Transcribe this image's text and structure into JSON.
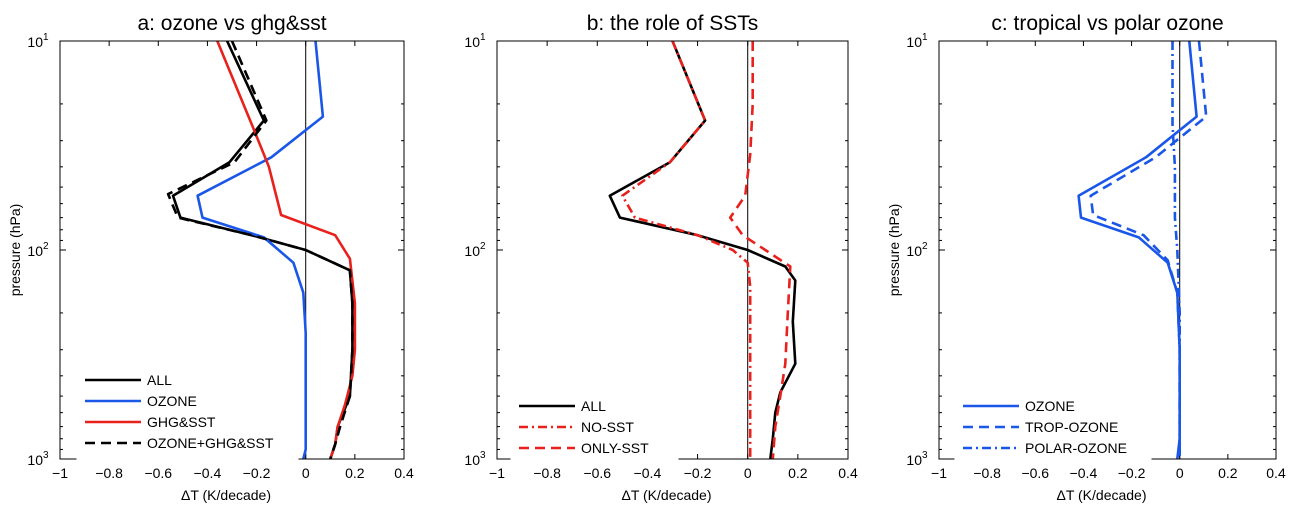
{
  "chart_data": [
    {
      "type": "line",
      "title": "a: ozone vs ghg&sst",
      "xlabel": "ΔT  (K/decade)",
      "ylabel": "pressure (hPa)",
      "xlim": [
        -1,
        0.4
      ],
      "ylim": [
        1000,
        10
      ],
      "yscale": "log",
      "y_inverted": true,
      "xticks": [
        "−1",
        "−0.8",
        "−0.6",
        "−0.4",
        "−0.2",
        "0",
        "0.2",
        "0.4"
      ],
      "yticks": [
        {
          "base": "10",
          "exp": "1",
          "value": 10
        },
        {
          "base": "10",
          "exp": "2",
          "value": 100
        },
        {
          "base": "10",
          "exp": "3",
          "value": 1000
        }
      ],
      "zero_line": true,
      "legend_position": "bottom-left",
      "series": [
        {
          "name": "ALL",
          "color": "#000000",
          "dash": "solid",
          "x": [
            -0.32,
            -0.17,
            -0.31,
            -0.54,
            -0.51,
            -0.22,
            0.0,
            0.18,
            0.19,
            0.19,
            0.18,
            0.13,
            0.12,
            0.1
          ],
          "y": [
            10,
            24,
            38,
            55,
            70,
            85,
            100,
            125,
            180,
            300,
            500,
            700,
            850,
            1000
          ]
        },
        {
          "name": "OZONE",
          "color": "#1a57e8",
          "dash": "solid",
          "x": [
            0.04,
            0.07,
            -0.14,
            -0.44,
            -0.42,
            -0.17,
            -0.05,
            -0.01,
            0.0,
            0.0,
            0.0,
            0.0,
            0.0,
            -0.01
          ],
          "y": [
            10,
            23,
            36,
            55,
            70,
            87,
            115,
            160,
            250,
            400,
            600,
            800,
            900,
            1000
          ]
        },
        {
          "name": "GHG&SST",
          "color": "#e8211c",
          "dash": "solid",
          "x": [
            -0.36,
            -0.22,
            -0.15,
            -0.1,
            0.12,
            0.18,
            0.2,
            0.2,
            0.19,
            0.16,
            0.13,
            0.12,
            0.1
          ],
          "y": [
            10,
            25,
            40,
            68,
            85,
            110,
            180,
            300,
            400,
            550,
            700,
            850,
            1000
          ]
        },
        {
          "name": "OZONE+GHG&SST",
          "color": "#000000",
          "dash": "dashed",
          "x": [
            -0.3,
            -0.16,
            -0.29,
            -0.56,
            -0.52,
            -0.22,
            0.0,
            0.18,
            0.19,
            0.19,
            0.18,
            0.14,
            0.12,
            0.1
          ],
          "y": [
            10,
            24,
            38,
            54,
            70,
            85,
            100,
            125,
            180,
            300,
            500,
            700,
            850,
            1000
          ]
        }
      ]
    },
    {
      "type": "line",
      "title": "b: the role of SSTs",
      "xlabel": "ΔT  (K/decade)",
      "ylabel": "",
      "xlim": [
        -1,
        0.4
      ],
      "ylim": [
        1000,
        10
      ],
      "yscale": "log",
      "y_inverted": true,
      "xticks": [
        "−1",
        "−0.8",
        "−0.6",
        "−0.4",
        "−0.2",
        "0",
        "0.2",
        "0.4"
      ],
      "yticks": [
        {
          "base": "10",
          "exp": "1",
          "value": 10
        },
        {
          "base": "10",
          "exp": "2",
          "value": 100
        },
        {
          "base": "10",
          "exp": "3",
          "value": 1000
        }
      ],
      "zero_line": true,
      "legend_position": "bottom-left",
      "series": [
        {
          "name": "ALL",
          "color": "#000000",
          "dash": "solid",
          "x": [
            -0.3,
            -0.17,
            -0.31,
            -0.55,
            -0.51,
            -0.2,
            0.0,
            0.15,
            0.19,
            0.18,
            0.19,
            0.13,
            0.11,
            0.1,
            0.09
          ],
          "y": [
            10,
            24,
            38,
            55,
            70,
            85,
            100,
            120,
            140,
            220,
            350,
            480,
            600,
            800,
            1000
          ]
        },
        {
          "name": "NO-SST",
          "color": "#e8211c",
          "dash": "dashdot",
          "x": [
            -0.3,
            -0.17,
            -0.31,
            -0.5,
            -0.45,
            -0.2,
            -0.06,
            0.0,
            0.01,
            0.01,
            0.01,
            0.01
          ],
          "y": [
            10,
            24,
            38,
            55,
            70,
            85,
            100,
            115,
            150,
            300,
            600,
            1000
          ]
        },
        {
          "name": "ONLY-SST",
          "color": "#e8211c",
          "dash": "dashed",
          "x": [
            0.02,
            0.02,
            0.01,
            -0.01,
            -0.07,
            -0.02,
            0.07,
            0.17,
            0.16,
            0.15,
            0.13,
            0.11,
            0.1
          ],
          "y": [
            10,
            20,
            35,
            55,
            70,
            85,
            100,
            120,
            200,
            350,
            500,
            700,
            1000
          ]
        }
      ]
    },
    {
      "type": "line",
      "title": "c: tropical vs polar ozone",
      "xlabel": "ΔT  (K/decade)",
      "ylabel": "pressure (hPa)",
      "xlim": [
        -1,
        0.4
      ],
      "ylim": [
        1000,
        10
      ],
      "yscale": "log",
      "y_inverted": true,
      "xticks": [
        "−1",
        "−0.8",
        "−0.6",
        "−0.4",
        "−0.2",
        "0",
        "0.2",
        "0.4"
      ],
      "yticks": [
        {
          "base": "10",
          "exp": "1",
          "value": 10
        },
        {
          "base": "10",
          "exp": "2",
          "value": 100
        },
        {
          "base": "10",
          "exp": "3",
          "value": 1000
        }
      ],
      "zero_line": true,
      "legend_position": "bottom-left",
      "series": [
        {
          "name": "OZONE",
          "color": "#1a57e8",
          "dash": "solid",
          "x": [
            0.04,
            0.07,
            -0.14,
            -0.42,
            -0.41,
            -0.17,
            -0.05,
            -0.01,
            0.0,
            0.0,
            0.0,
            -0.01
          ],
          "y": [
            10,
            23,
            36,
            55,
            70,
            87,
            115,
            160,
            300,
            600,
            800,
            1000
          ]
        },
        {
          "name": "TROP-OZONE",
          "color": "#1a57e8",
          "dash": "dashed",
          "x": [
            0.08,
            0.11,
            -0.1,
            -0.37,
            -0.36,
            -0.15,
            -0.05,
            -0.01,
            0.0,
            0.0,
            0.0
          ],
          "y": [
            10,
            23,
            36,
            55,
            68,
            85,
            112,
            160,
            300,
            600,
            1000
          ]
        },
        {
          "name": "POLAR-OZONE",
          "color": "#1a57e8",
          "dash": "dashdot",
          "x": [
            -0.03,
            -0.03,
            -0.02,
            -0.02,
            -0.01,
            0.0,
            0.0,
            0.0
          ],
          "y": [
            10,
            25,
            40,
            70,
            100,
            200,
            500,
            1000
          ]
        }
      ]
    }
  ]
}
